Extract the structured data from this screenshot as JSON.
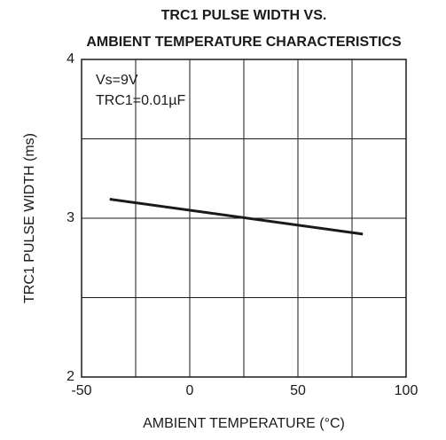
{
  "chart_data": {
    "type": "line",
    "title": [
      "TRC1 PULSE WIDTH VS.",
      "AMBIENT TEMPERATURE CHARACTERISTICS"
    ],
    "xlabel": "AMBIENT TEMPERATURE (°C)",
    "ylabel": "TRC1 PULSE WIDTH (ms)",
    "annotations": [
      "Vs=9V",
      "TRC1=0.01µF"
    ],
    "x": [
      -37,
      80
    ],
    "series": [
      {
        "color": "#1a1a1a",
        "values": [
          3.12,
          2.9
        ]
      }
    ],
    "xlim": [
      -50,
      100
    ],
    "xticks": [
      -50,
      0,
      50,
      100
    ],
    "xgrid": [
      -25,
      25,
      75
    ],
    "ylim": [
      2,
      4
    ],
    "yticks": [
      2,
      3,
      4
    ],
    "ygrid": [
      2.5,
      3.5
    ],
    "grid": true
  }
}
